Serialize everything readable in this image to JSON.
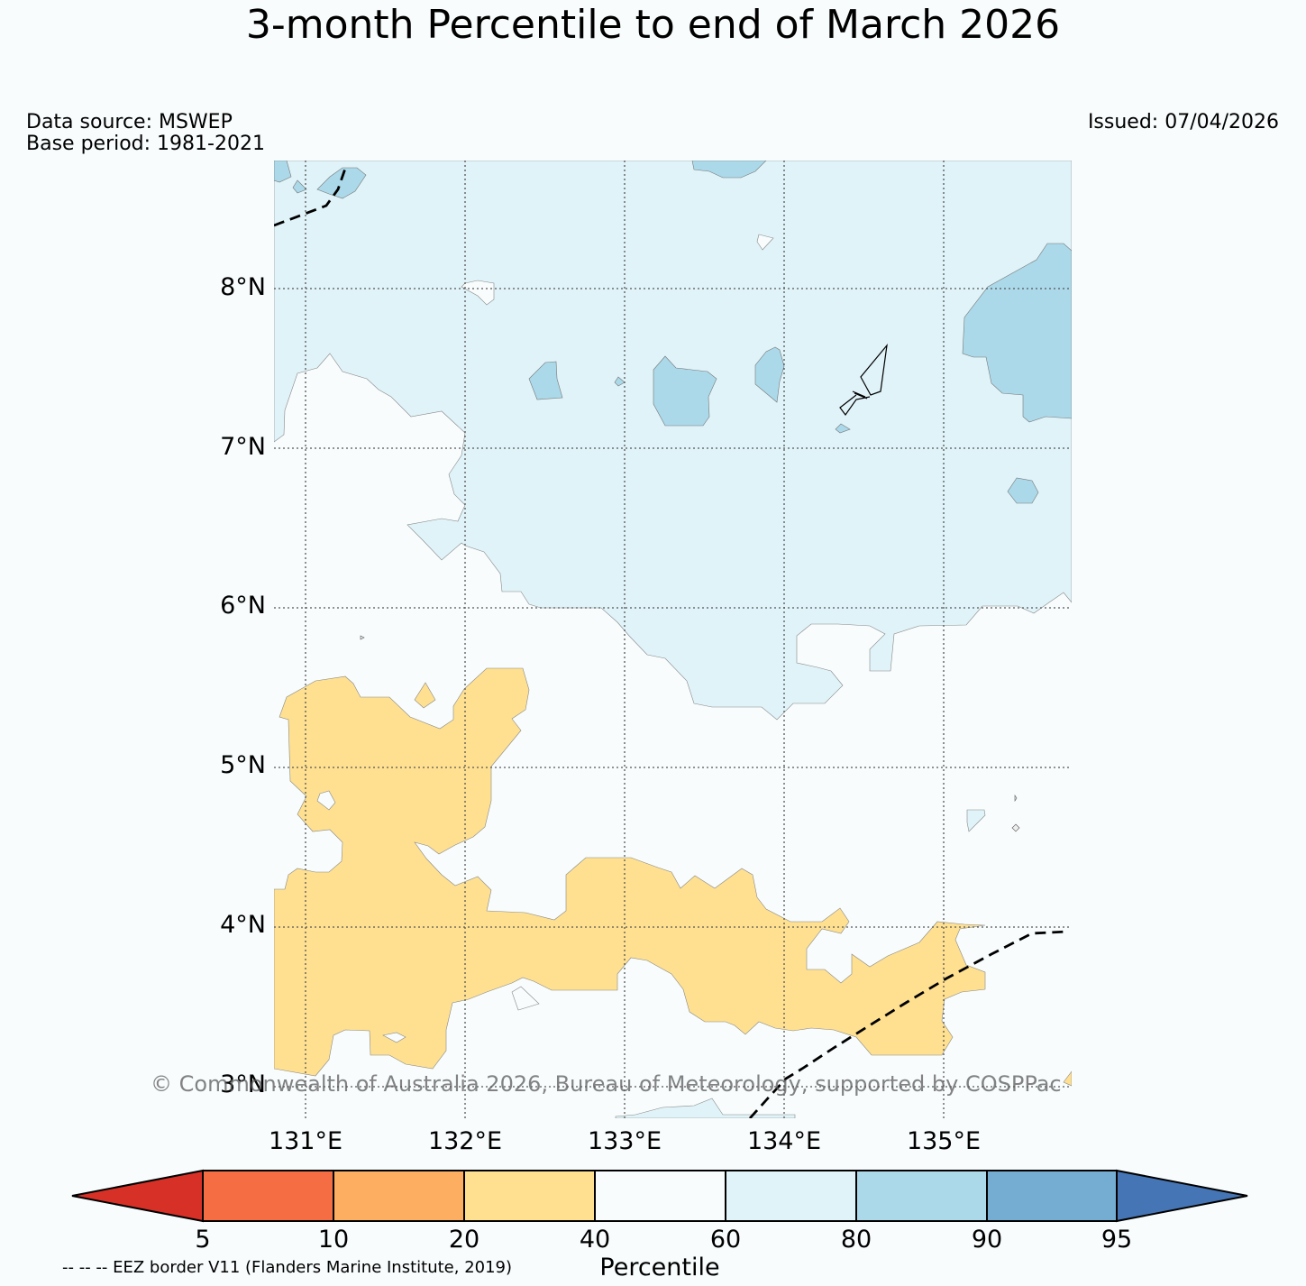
{
  "title": "3-month Percentile to end of March 2026",
  "data_source": "Data source: MSWEP",
  "base_period": "Base period: 1981-2021",
  "issued": "Issued: 07/04/2026",
  "lat_labels": [
    "8°N",
    "7°N",
    "6°N",
    "5°N",
    "4°N",
    "3°N"
  ],
  "lon_labels": [
    "131°E",
    "132°E",
    "133°E",
    "134°E",
    "135°E"
  ],
  "copyright": "© Commonwealth of Australia 2026, Bureau of Meteorology, supported by COSPPac",
  "colorbar": {
    "label": "Percentile",
    "ticks": [
      "5",
      "10",
      "20",
      "40",
      "60",
      "80",
      "90",
      "95"
    ],
    "colors": [
      "#d73027",
      "#f46d43",
      "#fdae61",
      "#fee090",
      "#f8fcfd",
      "#e0f3f8",
      "#abd9e9",
      "#74add1",
      "#4575b4"
    ]
  },
  "eez_note": "-- -- -- EEZ border V11 (Flanders Marine Institute, 2019)"
}
